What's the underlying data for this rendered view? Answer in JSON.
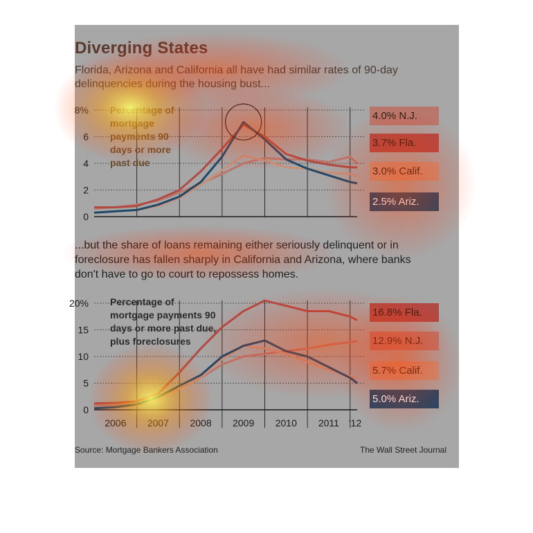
{
  "title": "Diverging States",
  "subtitle_top": "Florida, Arizona and California all have had similar rates of 90-day delinquencies during the housing bust...",
  "subtitle_middle": "...but the share of loans remaining either seriously delinquent or in foreclosure has fallen sharply in California and Arizona, where banks don't have to go to court to repossess homes.",
  "source": "Source: Mortgage Bankers Association",
  "credit": "The Wall Street Journal",
  "colors": {
    "background": "#a7a7a7",
    "nj": "#b9776c",
    "fla": "#b04a44",
    "calif": "#c89179",
    "ariz": "#1e4868",
    "grid": "#2b2b2b"
  },
  "chart_data": [
    {
      "type": "line",
      "description": "Percentage of mortgage payments 90 days or more past due",
      "x_start": "2006-01",
      "x_end": "2012-03",
      "ylim": [
        0,
        8
      ],
      "yticks": [
        "0",
        "2",
        "4",
        "6",
        "8%"
      ],
      "annotation": "circle highlighting 2009 peak",
      "series": [
        {
          "name": "N.J.",
          "label": "4.0% N.J.",
          "color": "#b9776c",
          "x": [
            "2006-01",
            "2006-07",
            "2007-01",
            "2007-07",
            "2008-01",
            "2008-07",
            "2009-01",
            "2009-07",
            "2010-01",
            "2010-07",
            "2011-01",
            "2011-07",
            "2012-01",
            "2012-03"
          ],
          "values": [
            0.6,
            0.7,
            0.9,
            1.2,
            1.8,
            2.5,
            3.2,
            4.0,
            4.4,
            4.3,
            4.3,
            4.1,
            4.5,
            4.0
          ]
        },
        {
          "name": "Fla.",
          "label": "3.7% Fla.",
          "color": "#b04a44",
          "x": [
            "2006-01",
            "2006-07",
            "2007-01",
            "2007-07",
            "2008-01",
            "2008-07",
            "2009-01",
            "2009-07",
            "2010-01",
            "2010-07",
            "2011-01",
            "2011-07",
            "2012-01",
            "2012-03"
          ],
          "values": [
            0.7,
            0.7,
            0.8,
            1.3,
            2.0,
            3.4,
            5.1,
            6.9,
            6.0,
            4.7,
            4.2,
            3.9,
            3.7,
            3.7
          ]
        },
        {
          "name": "Calif.",
          "label": "3.0% Calif.",
          "color": "#c89179",
          "x": [
            "2006-01",
            "2006-07",
            "2007-01",
            "2007-07",
            "2008-01",
            "2008-07",
            "2009-01",
            "2009-07",
            "2010-01",
            "2010-07",
            "2011-01",
            "2011-07",
            "2012-01",
            "2012-03"
          ],
          "values": [
            0.3,
            0.4,
            0.5,
            0.8,
            1.4,
            2.4,
            3.5,
            4.6,
            4.2,
            3.7,
            3.6,
            3.3,
            3.2,
            3.0
          ]
        },
        {
          "name": "Ariz.",
          "label": "2.5% Ariz.",
          "color": "#1e4868",
          "x": [
            "2006-01",
            "2006-07",
            "2007-01",
            "2007-07",
            "2008-01",
            "2008-07",
            "2009-01",
            "2009-07",
            "2010-01",
            "2010-07",
            "2011-01",
            "2011-07",
            "2012-01",
            "2012-03"
          ],
          "values": [
            0.3,
            0.4,
            0.5,
            0.9,
            1.5,
            2.6,
            4.5,
            7.1,
            5.8,
            4.3,
            3.6,
            3.1,
            2.6,
            2.5
          ]
        }
      ]
    },
    {
      "type": "line",
      "description": "Percentage of mortgage payments 90 days or more past due, plus foreclosures",
      "x_start": "2006-01",
      "x_end": "2012-03",
      "ylim": [
        0,
        20
      ],
      "yticks": [
        "0",
        "5",
        "10",
        "15",
        "20%"
      ],
      "xticks": [
        "2006",
        "2007",
        "2008",
        "2009",
        "2010",
        "2011",
        "'12"
      ],
      "series": [
        {
          "name": "Fla.",
          "label": "16.8% Fla.",
          "color": "#b04a44",
          "x": [
            "2006-01",
            "2006-07",
            "2007-01",
            "2007-07",
            "2008-01",
            "2008-07",
            "2009-01",
            "2009-07",
            "2010-01",
            "2010-07",
            "2011-01",
            "2011-07",
            "2012-01",
            "2012-03"
          ],
          "values": [
            1.2,
            1.3,
            1.6,
            3.0,
            7.0,
            11.5,
            15.5,
            18.5,
            20.5,
            19.5,
            18.5,
            18.5,
            17.5,
            16.8
          ]
        },
        {
          "name": "N.J.",
          "label": "12.9% N.J.",
          "color": "#b9776c",
          "x": [
            "2006-01",
            "2006-07",
            "2007-01",
            "2007-07",
            "2008-01",
            "2008-07",
            "2009-01",
            "2009-07",
            "2010-01",
            "2010-07",
            "2011-01",
            "2011-07",
            "2012-01",
            "2012-03"
          ],
          "values": [
            0.8,
            0.9,
            1.1,
            2.0,
            4.0,
            6.0,
            8.5,
            10.0,
            10.5,
            11.0,
            11.5,
            12.2,
            12.7,
            12.9
          ]
        },
        {
          "name": "Calif.",
          "label": "5.7% Calif.",
          "color": "#c89179",
          "x": [
            "2006-01",
            "2006-07",
            "2007-01",
            "2007-07",
            "2008-01",
            "2008-07",
            "2009-01",
            "2009-07",
            "2010-01",
            "2010-07",
            "2011-01",
            "2011-07",
            "2012-01",
            "2012-03"
          ],
          "values": [
            0.3,
            0.4,
            0.8,
            2.0,
            4.0,
            6.0,
            9.5,
            12.0,
            11.5,
            10.5,
            9.0,
            7.5,
            6.3,
            5.7
          ]
        },
        {
          "name": "Ariz.",
          "label": "5.0% Ariz.",
          "color": "#1e4868",
          "x": [
            "2006-01",
            "2006-07",
            "2007-01",
            "2007-07",
            "2008-01",
            "2008-07",
            "2009-01",
            "2009-07",
            "2010-01",
            "2010-07",
            "2011-01",
            "2011-07",
            "2012-01",
            "2012-03"
          ],
          "values": [
            0.3,
            0.5,
            1.0,
            2.4,
            4.5,
            6.5,
            10.0,
            12.0,
            13.0,
            11.0,
            10.0,
            8.0,
            6.0,
            5.0
          ]
        }
      ]
    }
  ]
}
